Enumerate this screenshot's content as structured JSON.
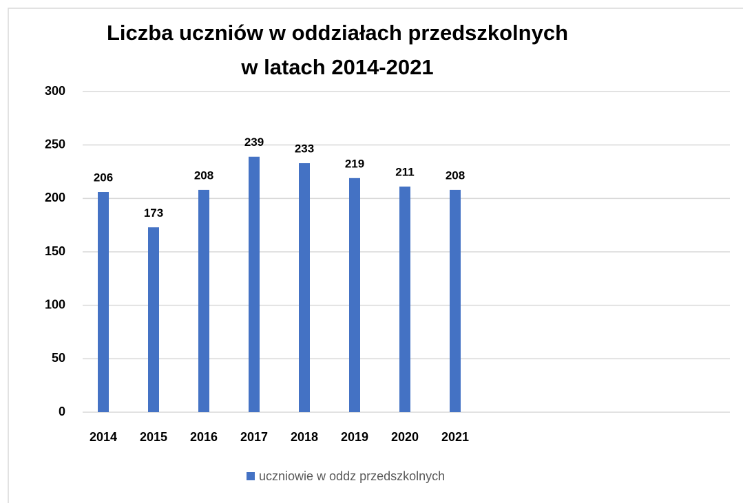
{
  "chart_data": {
    "type": "bar",
    "title": [
      "Liczba uczniów w oddziałach przedszkolnych",
      "w latach 2014-2021"
    ],
    "categories": [
      "2014",
      "2015",
      "2016",
      "2017",
      "2018",
      "2019",
      "2020",
      "2021"
    ],
    "series": [
      {
        "name": "uczniowie w oddz przedszkolnych",
        "color": "#4472c4",
        "values": [
          206,
          173,
          208,
          239,
          233,
          219,
          211,
          208
        ]
      }
    ],
    "ylim": [
      0,
      300
    ],
    "yticks": [
      0,
      50,
      100,
      150,
      200,
      250,
      300
    ],
    "grid": true,
    "legend": "bottom"
  }
}
